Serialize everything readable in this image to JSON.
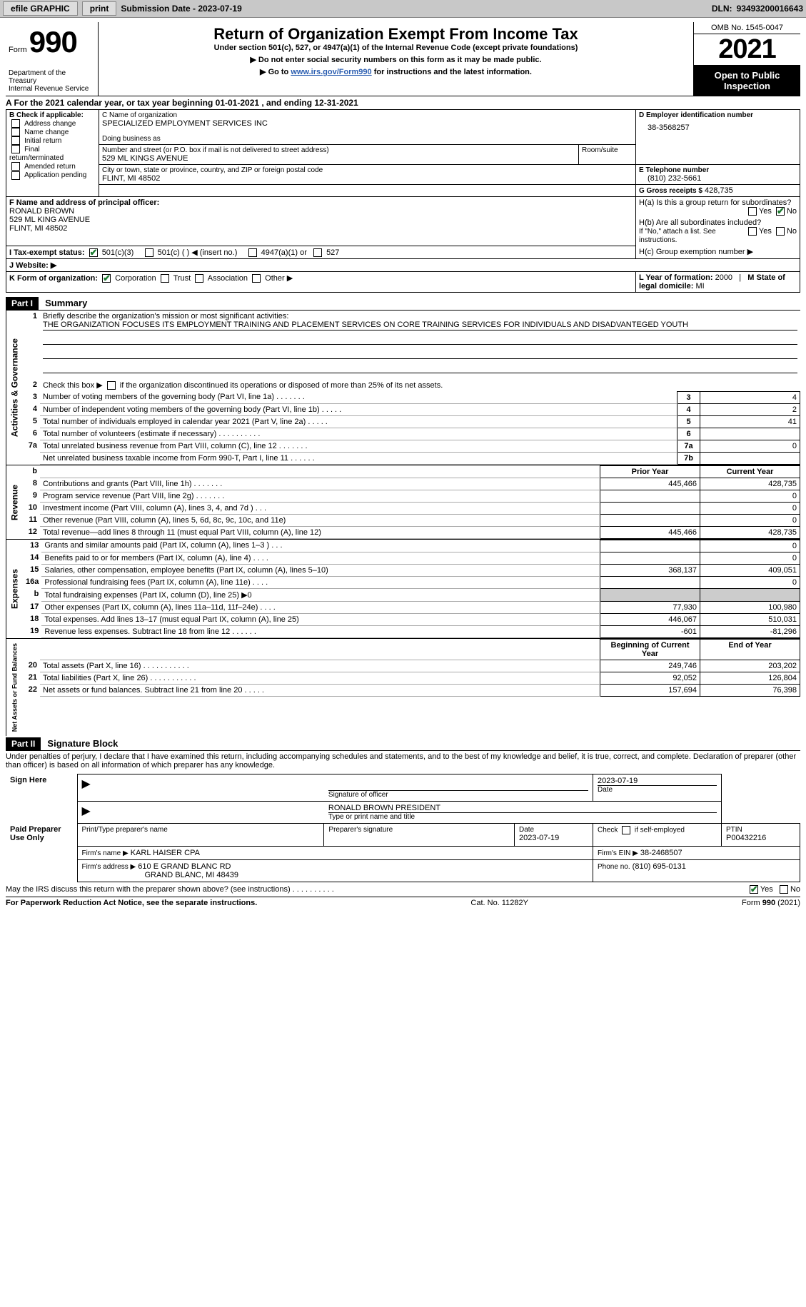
{
  "toolbar": {
    "efile": "efile GRAPHIC print",
    "efile_btn": "efile GRAPHIC",
    "print_btn": "print",
    "submission_label": "Submission Date - 2023-07-19",
    "dln_label": "DLN:",
    "dln": "93493200016643"
  },
  "header": {
    "form_word": "Form",
    "form_num": "990",
    "title": "Return of Organization Exempt From Income Tax",
    "under": "Under section 501(c), 527, or 4947(a)(1) of the Internal Revenue Code (except private foundations)",
    "warn": "▶ Do not enter social security numbers on this form as it may be made public.",
    "goto_pre": "▶ Go to ",
    "goto_link": "www.irs.gov/Form990",
    "goto_post": " for instructions and the latest information.",
    "omb": "OMB No. 1545-0047",
    "year": "2021",
    "open": "Open to Public Inspection",
    "dept": "Department of the Treasury",
    "irs": "Internal Revenue Service"
  },
  "cal": {
    "line": "A For the 2021 calendar year, or tax year beginning 01-01-2021   , and ending 12-31-2021"
  },
  "blockB": {
    "title": "B Check if applicable:",
    "opts": [
      "Address change",
      "Name change",
      "Initial return",
      "Final return/terminated",
      "Amended return",
      "Application pending"
    ]
  },
  "blockC": {
    "name_lbl": "C Name of organization",
    "name": "SPECIALIZED EMPLOYMENT SERVICES INC",
    "dba_lbl": "Doing business as",
    "addr_lbl": "Number and street (or P.O. box if mail is not delivered to street address)",
    "room_lbl": "Room/suite",
    "addr": "529 ML KINGS AVENUE",
    "city_lbl": "City or town, state or province, country, and ZIP or foreign postal code",
    "city": "FLINT, MI  48502"
  },
  "blockD": {
    "lbl": "D Employer identification number",
    "val": "38-3568257"
  },
  "blockE": {
    "lbl": "E Telephone number",
    "val": "(810) 232-5661"
  },
  "blockG": {
    "lbl": "G Gross receipts $",
    "val": "428,735"
  },
  "blockF": {
    "lbl": "F Name and address of principal officer:",
    "name": "RONALD BROWN",
    "addr1": "529 ML KING AVENUE",
    "addr2": "FLINT, MI  48502"
  },
  "blockH": {
    "a": "H(a)  Is this a group return for subordinates?",
    "b": "H(b)  Are all subordinates included?",
    "b_note": "If \"No,\" attach a list. See instructions.",
    "c": "H(c)  Group exemption number ▶",
    "yes": "Yes",
    "no": "No"
  },
  "blockI": {
    "lbl": "I   Tax-exempt status:",
    "opt1": "501(c)(3)",
    "opt2": "501(c) (  ) ◀ (insert no.)",
    "opt3": "4947(a)(1) or",
    "opt4": "527"
  },
  "blockJ": {
    "lbl": "J   Website: ▶"
  },
  "blockK": {
    "lbl": "K Form of organization:",
    "corp": "Corporation",
    "trust": "Trust",
    "assoc": "Association",
    "other": "Other ▶"
  },
  "blockL": {
    "lbl": "L Year of formation:",
    "val": "2000"
  },
  "blockM": {
    "lbl": "M State of legal domicile:",
    "val": "MI"
  },
  "parts": {
    "p1": "Part I",
    "p1_title": "Summary",
    "p2": "Part II",
    "p2_title": "Signature Block"
  },
  "summary": {
    "l1": "Briefly describe the organization's mission or most significant activities:",
    "mission": "THE ORGANIZATION FOCUSES ITS EMPLOYMENT TRAINING AND PLACEMENT SERVICES ON CORE TRAINING SERVICES FOR INDIVIDUALS AND DISADVANTEGED YOUTH",
    "l2": "Check this box ▶       if the organization discontinued its operations or disposed of more than 25% of its net assets.",
    "rows_gov": [
      {
        "n": "3",
        "d": "Number of voting members of the governing body (Part VI, line 1a)   .     .     .     .     .     .     .",
        "box": "3",
        "v": "4"
      },
      {
        "n": "4",
        "d": "Number of independent voting members of the governing body (Part VI, line 1b)   .     .     .     .     .",
        "box": "4",
        "v": "2"
      },
      {
        "n": "5",
        "d": "Total number of individuals employed in calendar year 2021 (Part V, line 2a)   .     .     .     .     .",
        "box": "5",
        "v": "41"
      },
      {
        "n": "6",
        "d": "Total number of volunteers (estimate if necessary)    .     .     .     .     .     .     .     .     .     .",
        "box": "6",
        "v": ""
      },
      {
        "n": "7a",
        "d": "Total unrelated business revenue from Part VIII, column (C), line 12   .     .     .     .     .     .     .",
        "box": "7a",
        "v": "0"
      },
      {
        "n": "",
        "d": "Net unrelated business taxable income from Form 990-T, Part I, line 11   .     .     .     .     .     .",
        "box": "7b",
        "v": ""
      }
    ],
    "col_prior": "Prior Year",
    "col_curr": "Current Year",
    "rows_rev": [
      {
        "n": "8",
        "d": "Contributions and grants (Part VIII, line 1h)    .     .     .     .     .     .     .",
        "p": "445,466",
        "c": "428,735"
      },
      {
        "n": "9",
        "d": "Program service revenue (Part VIII, line 2g)   .     .     .     .     .     .     .",
        "p": "",
        "c": "0"
      },
      {
        "n": "10",
        "d": "Investment income (Part VIII, column (A), lines 3, 4, and 7d )   .     .     .",
        "p": "",
        "c": "0"
      },
      {
        "n": "11",
        "d": "Other revenue (Part VIII, column (A), lines 5, 6d, 8c, 9c, 10c, and 11e)",
        "p": "",
        "c": "0"
      },
      {
        "n": "12",
        "d": "Total revenue—add lines 8 through 11 (must equal Part VIII, column (A), line 12)",
        "p": "445,466",
        "c": "428,735"
      }
    ],
    "rows_exp": [
      {
        "n": "13",
        "d": "Grants and similar amounts paid (Part IX, column (A), lines 1–3 )   .     .     .",
        "p": "",
        "c": "0"
      },
      {
        "n": "14",
        "d": "Benefits paid to or for members (Part IX, column (A), line 4)   .     .     .     .",
        "p": "",
        "c": "0"
      },
      {
        "n": "15",
        "d": "Salaries, other compensation, employee benefits (Part IX, column (A), lines 5–10)",
        "p": "368,137",
        "c": "409,051"
      },
      {
        "n": "16a",
        "d": "Professional fundraising fees (Part IX, column (A), line 11e)   .     .     .     .",
        "p": "",
        "c": "0"
      },
      {
        "n": "b",
        "d": "Total fundraising expenses (Part IX, column (D), line 25) ▶0",
        "p": "GREY",
        "c": "GREY"
      },
      {
        "n": "17",
        "d": "Other expenses (Part IX, column (A), lines 11a–11d, 11f–24e)    .     .     .     .",
        "p": "77,930",
        "c": "100,980"
      },
      {
        "n": "18",
        "d": "Total expenses. Add lines 13–17 (must equal Part IX, column (A), line 25)",
        "p": "446,067",
        "c": "510,031"
      },
      {
        "n": "19",
        "d": "Revenue less expenses. Subtract line 18 from line 12   .     .     .     .     .     .",
        "p": "-601",
        "c": "-81,296"
      }
    ],
    "col_boy": "Beginning of Current Year",
    "col_eoy": "End of Year",
    "rows_net": [
      {
        "n": "20",
        "d": "Total assets (Part X, line 16)   .     .     .     .     .     .     .     .     .     .     .",
        "p": "249,746",
        "c": "203,202"
      },
      {
        "n": "21",
        "d": "Total liabilities (Part X, line 26)   .     .     .     .     .     .     .     .     .     .     .",
        "p": "92,052",
        "c": "126,804"
      },
      {
        "n": "22",
        "d": "Net assets or fund balances. Subtract line 21 from line 20   .     .     .     .     .",
        "p": "157,694",
        "c": "76,398"
      }
    ],
    "vert_gov": "Activities & Governance",
    "vert_rev": "Revenue",
    "vert_exp": "Expenses",
    "vert_net": "Net Assets or Fund Balances"
  },
  "sig": {
    "decl": "Under penalties of perjury, I declare that I have examined this return, including accompanying schedules and statements, and to the best of my knowledge and belief, it is true, correct, and complete. Declaration of preparer (other than officer) is based on all information of which preparer has any knowledge.",
    "sign_here": "Sign Here",
    "sig_officer": "Signature of officer",
    "sig_date": "2023-07-19",
    "date_lbl": "Date",
    "officer": "RONALD BROWN  PRESIDENT",
    "type_name": "Type or print name and title",
    "paid": "Paid Preparer Use Only",
    "prep_name_lbl": "Print/Type preparer's name",
    "prep_sig_lbl": "Preparer's signature",
    "prep_date_lbl": "Date",
    "prep_date": "2023-07-19",
    "check_self": "Check        if self-employed",
    "ptin_lbl": "PTIN",
    "ptin": "P00432216",
    "firm_name_lbl": "Firm's name     ▶",
    "firm_name": "KARL HAISER CPA",
    "firm_ein_lbl": "Firm's EIN ▶",
    "firm_ein": "38-2468507",
    "firm_addr_lbl": "Firm's address ▶",
    "firm_addr1": "610 E GRAND BLANC RD",
    "firm_addr2": "GRAND BLANC, MI  48439",
    "phone_lbl": "Phone no.",
    "phone": "(810) 695-0131",
    "discuss": "May the IRS discuss this return with the preparer shown above? (see instructions)   .     .     .     .     .     .     .     .     .     .",
    "yes": "Yes",
    "no": "No"
  },
  "footer": {
    "left": "For Paperwork Reduction Act Notice, see the separate instructions.",
    "mid": "Cat. No. 11282Y",
    "right": "Form 990 (2021)"
  }
}
